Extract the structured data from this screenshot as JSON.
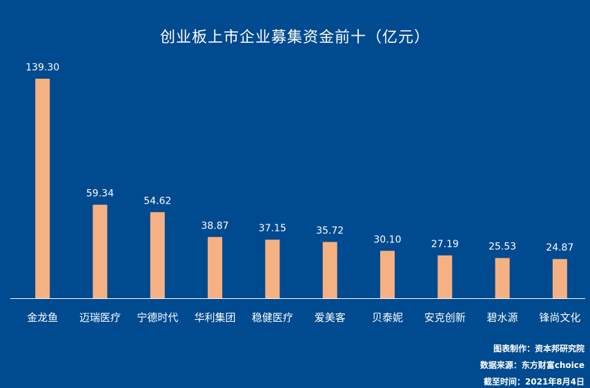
{
  "colors": {
    "background": "#004a8f",
    "bar": "#f6b183",
    "text": "#ffffff",
    "axis": "#ffffff"
  },
  "chart_data": {
    "type": "bar",
    "title": "创业板上市企业募集资金前十（亿元）",
    "xlabel": "",
    "ylabel": "",
    "ylim": [
      0,
      139.3
    ],
    "grid": false,
    "categories": [
      "金龙鱼",
      "迈瑞医疗",
      "宁德时代",
      "华利集团",
      "稳健医疗",
      "爱美客",
      "贝泰妮",
      "安克创新",
      "碧水源",
      "锋尚文化"
    ],
    "values": [
      139.3,
      59.34,
      54.62,
      38.87,
      37.15,
      35.72,
      30.1,
      27.19,
      25.53,
      24.87
    ],
    "value_labels": [
      "139.30",
      "59.34",
      "54.62",
      "38.87",
      "37.15",
      "35.72",
      "30.10",
      "27.19",
      "25.53",
      "24.87"
    ]
  },
  "footer": {
    "maker": "图表制作：资本邦研究院",
    "source": "数据来源：东方财富choice",
    "date": "截至时间：2021年8月4日"
  }
}
